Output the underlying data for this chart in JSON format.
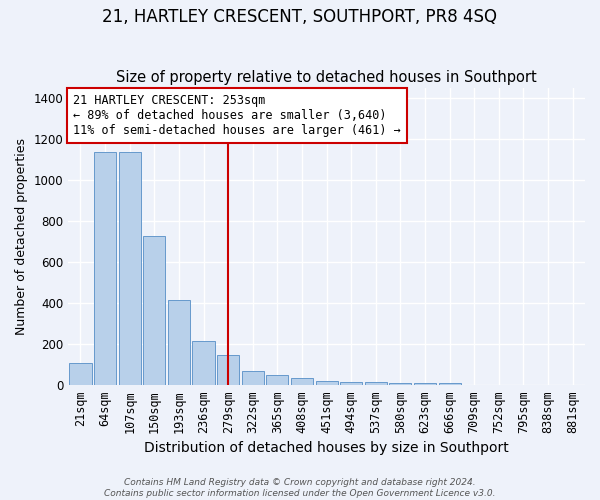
{
  "title": "21, HARTLEY CRESCENT, SOUTHPORT, PR8 4SQ",
  "subtitle": "Size of property relative to detached houses in Southport",
  "xlabel": "Distribution of detached houses by size in Southport",
  "ylabel": "Number of detached properties",
  "footer_line1": "Contains HM Land Registry data © Crown copyright and database right 2024.",
  "footer_line2": "Contains public sector information licensed under the Open Government Licence v3.0.",
  "categories": [
    "21sqm",
    "64sqm",
    "107sqm",
    "150sqm",
    "193sqm",
    "236sqm",
    "279sqm",
    "322sqm",
    "365sqm",
    "408sqm",
    "451sqm",
    "494sqm",
    "537sqm",
    "580sqm",
    "623sqm",
    "666sqm",
    "709sqm",
    "752sqm",
    "795sqm",
    "838sqm",
    "881sqm"
  ],
  "values": [
    110,
    1140,
    1140,
    730,
    415,
    215,
    145,
    70,
    48,
    33,
    18,
    15,
    15,
    12,
    12,
    8,
    0,
    0,
    0,
    0,
    0
  ],
  "bar_color": "#b8d0ea",
  "bar_edge_color": "#6699cc",
  "vline_x_index": 6.0,
  "vline_color": "#cc0000",
  "annotation_line1": "21 HARTLEY CRESCENT: 253sqm",
  "annotation_line2": "← 89% of detached houses are smaller (3,640)",
  "annotation_line3": "11% of semi-detached houses are larger (461) →",
  "annotation_box_color": "#ffffff",
  "annotation_border_color": "#cc0000",
  "ylim": [
    0,
    1450
  ],
  "yticks": [
    0,
    200,
    400,
    600,
    800,
    1000,
    1200,
    1400
  ],
  "background_color": "#eef2fa",
  "axes_background": "#eef2fa",
  "grid_color": "#ffffff",
  "title_fontsize": 12,
  "subtitle_fontsize": 10.5,
  "xlabel_fontsize": 10,
  "ylabel_fontsize": 9,
  "tick_fontsize": 8.5,
  "annotation_fontsize": 8.5
}
